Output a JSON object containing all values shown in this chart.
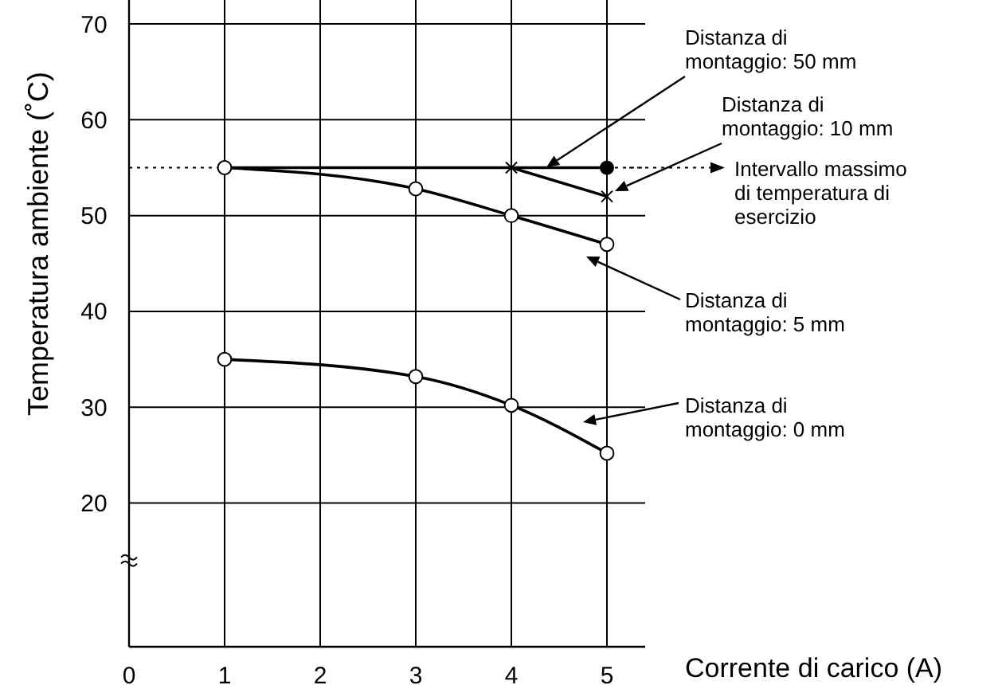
{
  "chart_data": {
    "type": "line",
    "xlabel": "Corrente di carico (A)",
    "ylabel": "Temperatura ambiente (˚C)",
    "legend": "right",
    "xlim": [
      0,
      5.4
    ],
    "xticks": [
      0,
      1,
      2,
      3,
      4,
      5
    ],
    "ylim": [
      5,
      72.5
    ],
    "yticks": [
      20,
      30,
      40,
      50,
      60,
      70
    ],
    "grid": true,
    "series": [
      {
        "name": "Distanza di montaggio: 50 mm",
        "color": "#000000",
        "x": [
          1,
          5
        ],
        "values": [
          55,
          55
        ],
        "marker": "circle"
      },
      {
        "name": "Distanza di montaggio: 10 mm",
        "color": "#000000",
        "x": [
          4,
          5
        ],
        "values": [
          55,
          52
        ],
        "marker": "cross"
      },
      {
        "name": "Distanza di montaggio: 5 mm",
        "color": "#000000",
        "x": [
          1,
          3,
          4,
          5
        ],
        "values": [
          55,
          52.8,
          50,
          47
        ],
        "marker": "circle"
      },
      {
        "name": "Distanza di montaggio: 0 mm",
        "color": "#000000",
        "x": [
          1,
          3,
          4,
          5
        ],
        "values": [
          35,
          33.2,
          30.2,
          25.2
        ],
        "marker": "circle"
      }
    ],
    "ref_lines": [
      {
        "axis": "y",
        "value": 55,
        "label": "Intervallo massimo di temperatura di esercizio",
        "line_style": "dotted"
      }
    ]
  }
}
